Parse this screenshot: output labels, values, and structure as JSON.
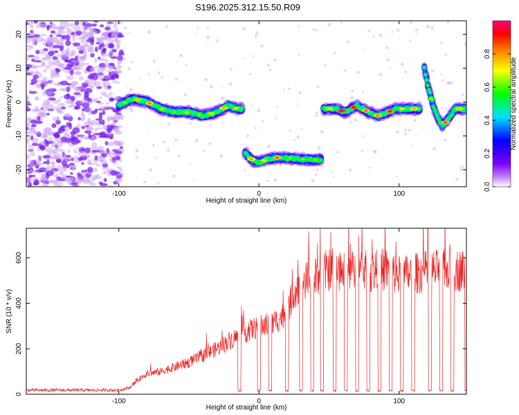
{
  "figure_title": "S196.2025.312.15.50.R09",
  "chart_data": [
    {
      "type": "heatmap",
      "title": "S196.2025.312.15.50.R09",
      "xlabel": "Height of straight line (km)",
      "ylabel": "Frequency (Hz)",
      "xlim": [
        -166,
        148
      ],
      "ylim": [
        -25,
        24
      ],
      "xticks": [
        -100,
        0,
        100
      ],
      "yticks": [
        -20,
        -10,
        0,
        10,
        20
      ],
      "colorbar": {
        "label": "Normalized spectral amplitude",
        "range": [
          0,
          1
        ],
        "ticks": [
          0.0,
          0.2,
          0.4,
          0.6,
          0.8
        ],
        "tick_labels": [
          "0.0",
          "0.2",
          "0.4",
          "0.6",
          "0.8"
        ],
        "colormap": [
          "#ffffff",
          "#7a00ff",
          "#0000ff",
          "#00e0ff",
          "#00ff00",
          "#ffff00",
          "#ff8000",
          "#ff0000",
          "#ff0080"
        ]
      },
      "noise_region_x": [
        -166,
        -100
      ],
      "segments": [
        {
          "x_start": -100,
          "x_end": -12,
          "freq_points": [
            [
              -100,
              -1
            ],
            [
              -90,
              1
            ],
            [
              -80,
              0
            ],
            [
              -70,
              -2
            ],
            [
              -60,
              -3
            ],
            [
              -50,
              -3
            ],
            [
              -40,
              -4
            ],
            [
              -30,
              -3
            ],
            [
              -22,
              -1
            ],
            [
              -15,
              -2
            ]
          ],
          "peak_amplitude": 0.8
        },
        {
          "x_start": -10,
          "x_end": 45,
          "freq_points": [
            [
              -10,
              -15
            ],
            [
              -5,
              -17
            ],
            [
              0,
              -18
            ],
            [
              5,
              -17
            ],
            [
              10,
              -16.5
            ],
            [
              20,
              -16.5
            ],
            [
              30,
              -16.8
            ],
            [
              40,
              -17
            ],
            [
              45,
              -17
            ]
          ],
          "peak_amplitude": 0.95
        },
        {
          "x_start": 46,
          "x_end": 115,
          "freq_points": [
            [
              46,
              -2
            ],
            [
              55,
              -2
            ],
            [
              62,
              -3
            ],
            [
              70,
              -1
            ],
            [
              78,
              -3
            ],
            [
              85,
              -4
            ],
            [
              92,
              -3
            ],
            [
              98,
              -2
            ],
            [
              105,
              -2
            ],
            [
              112,
              -2
            ]
          ],
          "peak_amplitude": 0.95
        },
        {
          "x_start": 118,
          "x_end": 148,
          "freq_points": [
            [
              118,
              10
            ],
            [
              121,
              4
            ],
            [
              125,
              -2
            ],
            [
              128,
              -5
            ],
            [
              131,
              -7
            ],
            [
              135,
              -5
            ],
            [
              140,
              -2
            ],
            [
              148,
              -2
            ]
          ],
          "peak_amplitude": 0.9
        }
      ]
    },
    {
      "type": "line",
      "xlabel": "Height of straight line (km)",
      "ylabel": "SNR (10 * v/v)",
      "xlim": [
        -166,
        148
      ],
      "ylim": [
        0,
        730
      ],
      "xticks": [
        -100,
        0,
        100
      ],
      "yticks": [
        0,
        200,
        400,
        600
      ],
      "color": "#ee2222",
      "baseline_noise_level": 12,
      "trend_points": [
        [
          -166,
          18
        ],
        [
          -100,
          18
        ],
        [
          -92,
          30
        ],
        [
          -85,
          70
        ],
        [
          -80,
          90
        ],
        [
          -70,
          100
        ],
        [
          -60,
          120
        ],
        [
          -50,
          140
        ],
        [
          -40,
          170
        ],
        [
          -30,
          200
        ],
        [
          -20,
          240
        ],
        [
          -10,
          270
        ],
        [
          0,
          300
        ],
        [
          10,
          310
        ],
        [
          20,
          360
        ],
        [
          25,
          450
        ],
        [
          30,
          490
        ],
        [
          40,
          510
        ],
        [
          50,
          550
        ],
        [
          60,
          540
        ],
        [
          70,
          540
        ],
        [
          80,
          540
        ],
        [
          90,
          550
        ],
        [
          100,
          520
        ],
        [
          110,
          530
        ],
        [
          120,
          540
        ],
        [
          130,
          545
        ],
        [
          148,
          545
        ]
      ],
      "dropout_x": [
        -14,
        0,
        8,
        20,
        30,
        38,
        45,
        54,
        62,
        70,
        78,
        86,
        94,
        102,
        110,
        122,
        130,
        138,
        148
      ]
    }
  ]
}
